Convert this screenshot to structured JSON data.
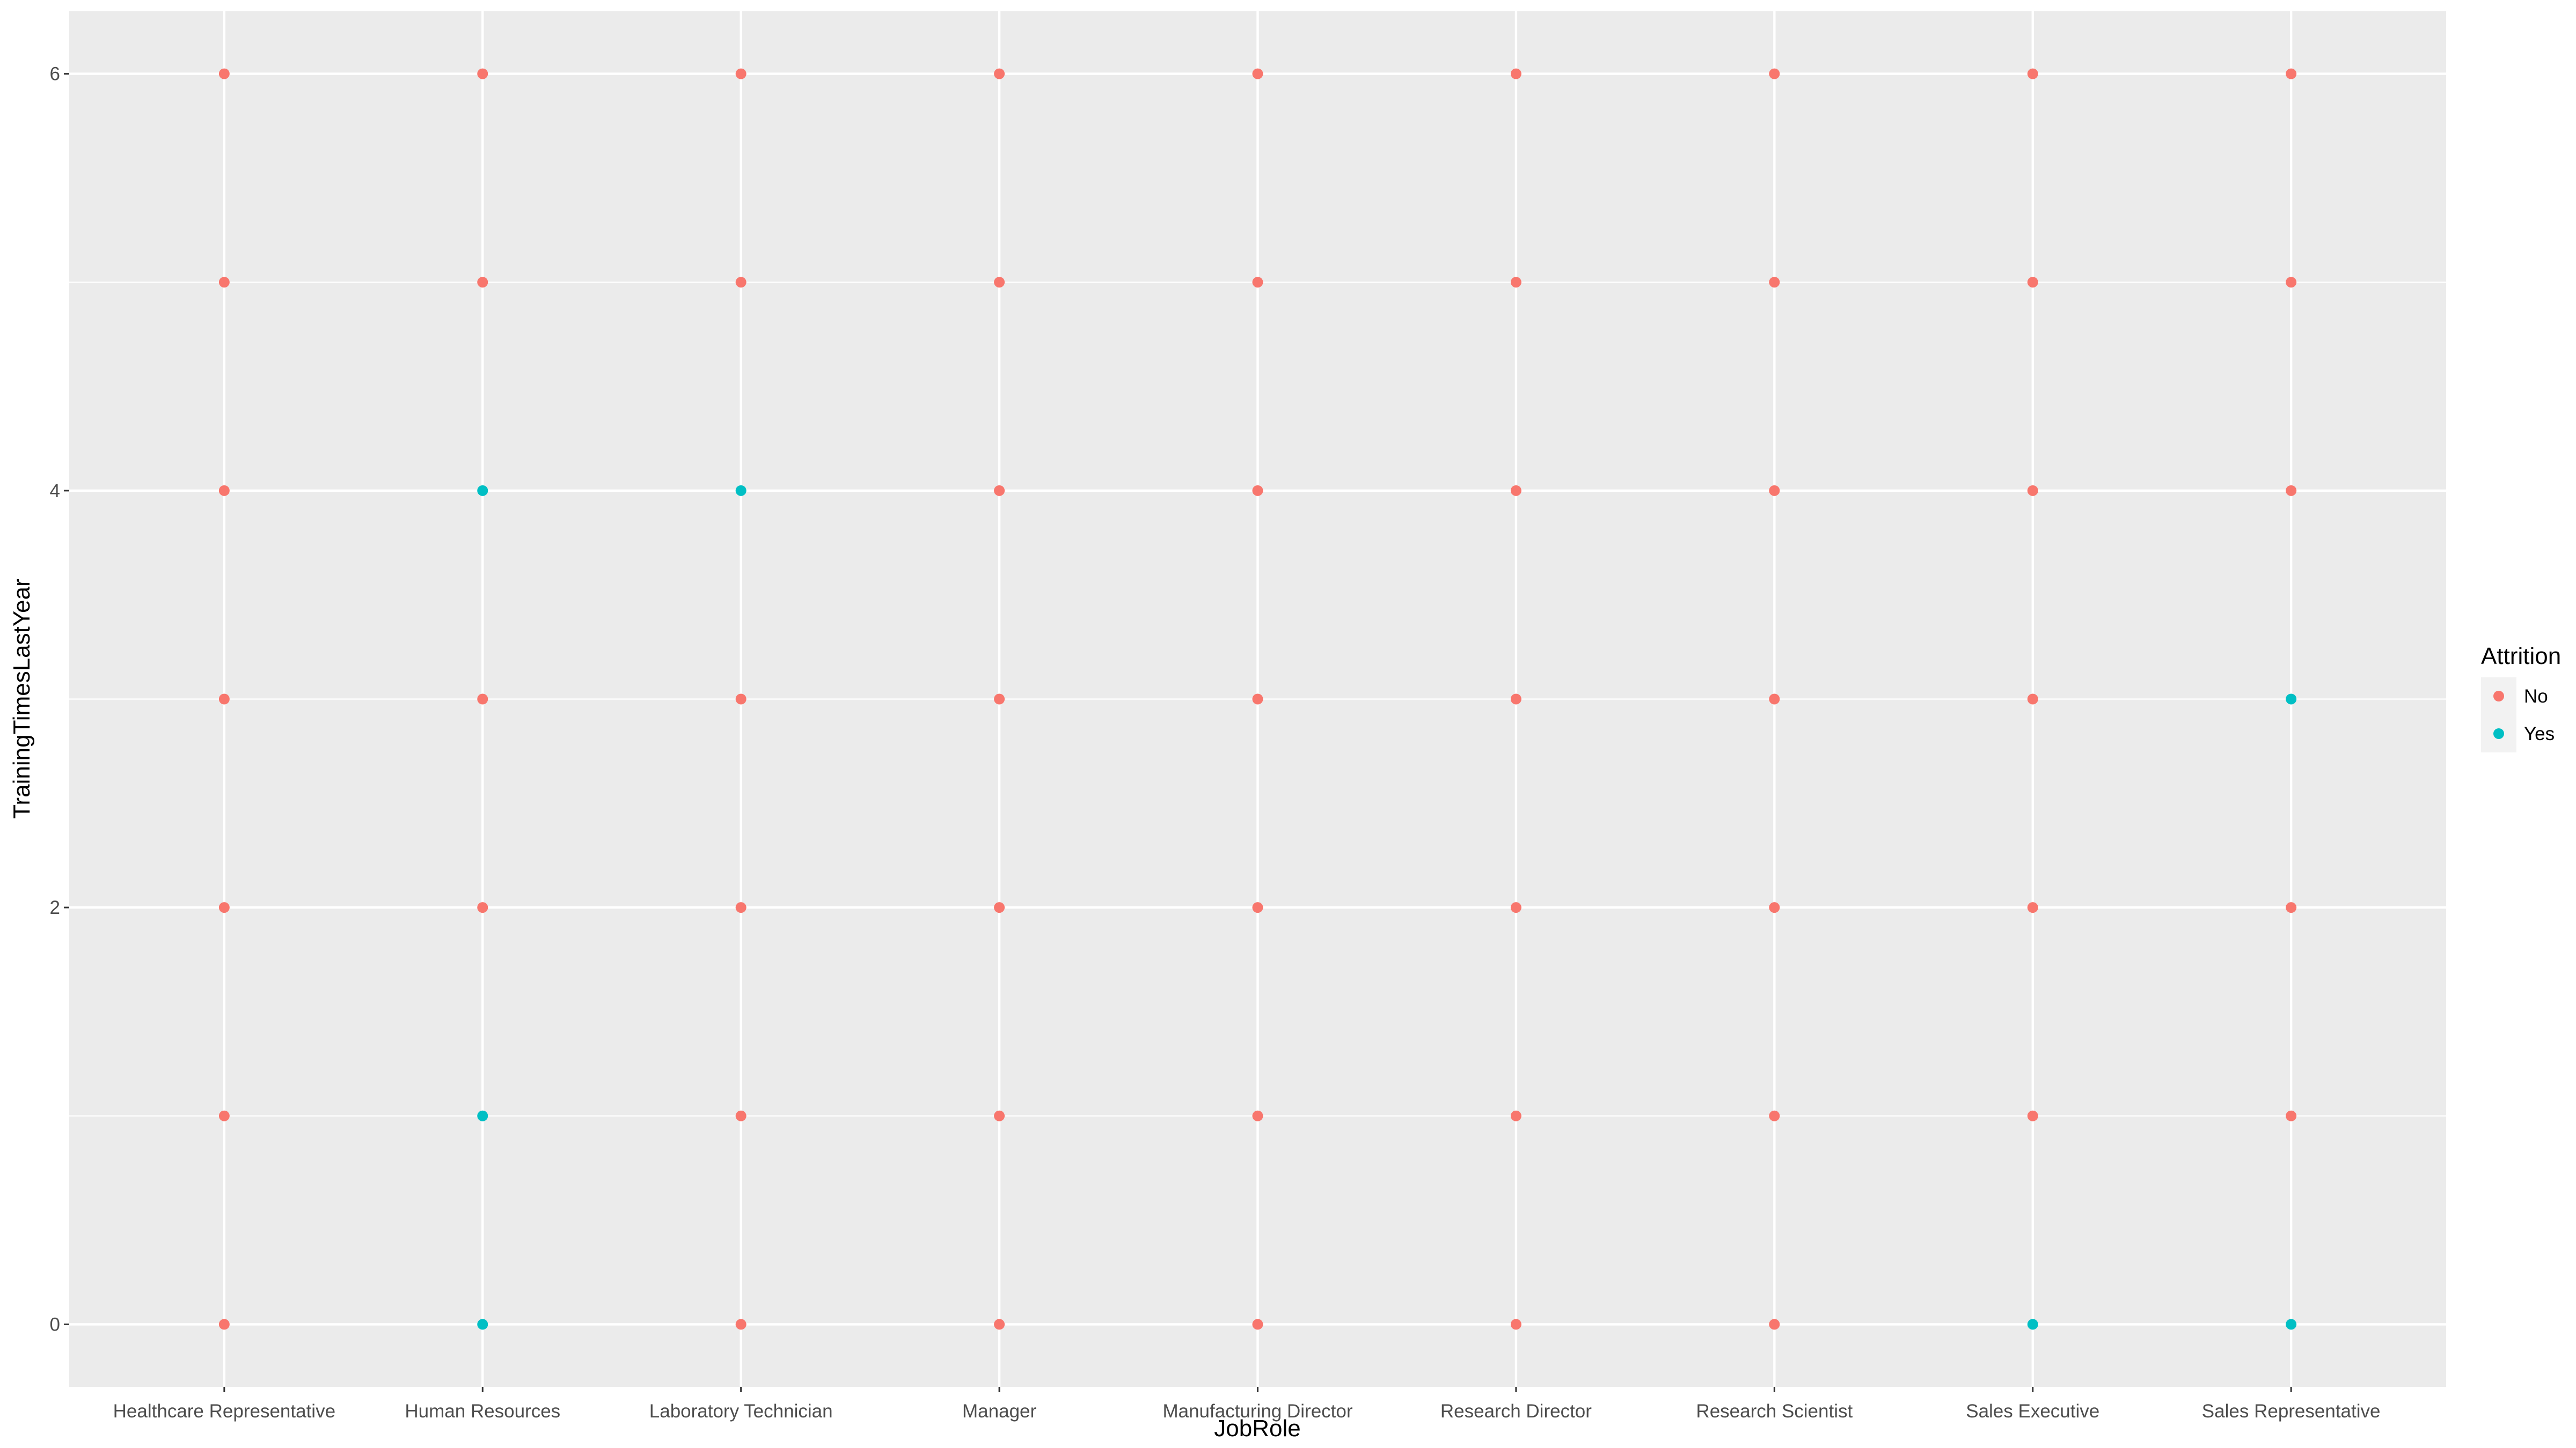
{
  "chart_data": {
    "type": "scatter",
    "title": "",
    "xlabel": "JobRole",
    "ylabel": "TrainingTimesLastYear",
    "categories": [
      "Healthcare Representative",
      "Human Resources",
      "Laboratory Technician",
      "Manager",
      "Manufacturing Director",
      "Research Director",
      "Research Scientist",
      "Sales Executive",
      "Sales Representative"
    ],
    "ylim": [
      -0.3,
      6.3
    ],
    "yticks": [
      0,
      2,
      4,
      6
    ],
    "grid": true,
    "legend": {
      "title": "Attrition",
      "position": "right",
      "entries": [
        {
          "label": "No",
          "color": "#F8766D"
        },
        {
          "label": "Yes",
          "color": "#00BFC4"
        }
      ]
    },
    "series": [
      {
        "name": "No",
        "color": "#F8766D",
        "points": [
          {
            "x": "Healthcare Representative",
            "y": 0
          },
          {
            "x": "Healthcare Representative",
            "y": 1
          },
          {
            "x": "Healthcare Representative",
            "y": 2
          },
          {
            "x": "Healthcare Representative",
            "y": 3
          },
          {
            "x": "Healthcare Representative",
            "y": 4
          },
          {
            "x": "Healthcare Representative",
            "y": 5
          },
          {
            "x": "Healthcare Representative",
            "y": 6
          },
          {
            "x": "Human Resources",
            "y": 2
          },
          {
            "x": "Human Resources",
            "y": 3
          },
          {
            "x": "Human Resources",
            "y": 5
          },
          {
            "x": "Human Resources",
            "y": 6
          },
          {
            "x": "Laboratory Technician",
            "y": 0
          },
          {
            "x": "Laboratory Technician",
            "y": 1
          },
          {
            "x": "Laboratory Technician",
            "y": 2
          },
          {
            "x": "Laboratory Technician",
            "y": 3
          },
          {
            "x": "Laboratory Technician",
            "y": 5
          },
          {
            "x": "Laboratory Technician",
            "y": 6
          },
          {
            "x": "Manager",
            "y": 0
          },
          {
            "x": "Manager",
            "y": 1
          },
          {
            "x": "Manager",
            "y": 2
          },
          {
            "x": "Manager",
            "y": 3
          },
          {
            "x": "Manager",
            "y": 4
          },
          {
            "x": "Manager",
            "y": 5
          },
          {
            "x": "Manager",
            "y": 6
          },
          {
            "x": "Manufacturing Director",
            "y": 0
          },
          {
            "x": "Manufacturing Director",
            "y": 1
          },
          {
            "x": "Manufacturing Director",
            "y": 2
          },
          {
            "x": "Manufacturing Director",
            "y": 3
          },
          {
            "x": "Manufacturing Director",
            "y": 4
          },
          {
            "x": "Manufacturing Director",
            "y": 5
          },
          {
            "x": "Manufacturing Director",
            "y": 6
          },
          {
            "x": "Research Director",
            "y": 0
          },
          {
            "x": "Research Director",
            "y": 1
          },
          {
            "x": "Research Director",
            "y": 2
          },
          {
            "x": "Research Director",
            "y": 3
          },
          {
            "x": "Research Director",
            "y": 4
          },
          {
            "x": "Research Director",
            "y": 5
          },
          {
            "x": "Research Director",
            "y": 6
          },
          {
            "x": "Research Scientist",
            "y": 0
          },
          {
            "x": "Research Scientist",
            "y": 1
          },
          {
            "x": "Research Scientist",
            "y": 2
          },
          {
            "x": "Research Scientist",
            "y": 3
          },
          {
            "x": "Research Scientist",
            "y": 4
          },
          {
            "x": "Research Scientist",
            "y": 5
          },
          {
            "x": "Research Scientist",
            "y": 6
          },
          {
            "x": "Sales Executive",
            "y": 1
          },
          {
            "x": "Sales Executive",
            "y": 2
          },
          {
            "x": "Sales Executive",
            "y": 3
          },
          {
            "x": "Sales Executive",
            "y": 4
          },
          {
            "x": "Sales Executive",
            "y": 5
          },
          {
            "x": "Sales Executive",
            "y": 6
          },
          {
            "x": "Sales Representative",
            "y": 1
          },
          {
            "x": "Sales Representative",
            "y": 2
          },
          {
            "x": "Sales Representative",
            "y": 4
          },
          {
            "x": "Sales Representative",
            "y": 5
          },
          {
            "x": "Sales Representative",
            "y": 6
          }
        ]
      },
      {
        "name": "Yes",
        "color": "#00BFC4",
        "points": [
          {
            "x": "Human Resources",
            "y": 0
          },
          {
            "x": "Human Resources",
            "y": 1
          },
          {
            "x": "Human Resources",
            "y": 4
          },
          {
            "x": "Laboratory Technician",
            "y": 4
          },
          {
            "x": "Sales Executive",
            "y": 0
          },
          {
            "x": "Sales Representative",
            "y": 0
          },
          {
            "x": "Sales Representative",
            "y": 3
          }
        ]
      }
    ]
  }
}
